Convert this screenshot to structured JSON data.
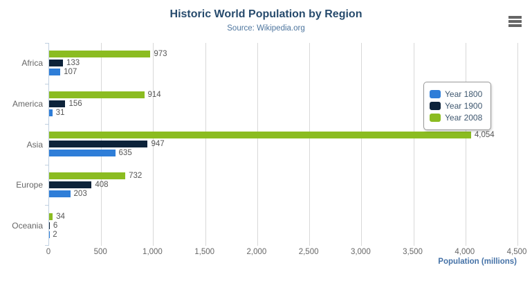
{
  "chart_data": {
    "type": "bar",
    "title": "Historic World Population by Region",
    "subtitle": "Source: Wikipedia.org",
    "categories": [
      "Africa",
      "America",
      "Asia",
      "Europe",
      "Oceania"
    ],
    "series": [
      {
        "name": "Year 1800",
        "color": "#2f7ed8",
        "values": [
          107,
          31,
          635,
          203,
          2
        ]
      },
      {
        "name": "Year 1900",
        "color": "#0d233a",
        "values": [
          133,
          156,
          947,
          408,
          6
        ]
      },
      {
        "name": "Year 2008",
        "color": "#8bbc21",
        "values": [
          973,
          914,
          4054,
          732,
          34
        ]
      }
    ],
    "series_display_order_top_to_bottom": [
      2,
      1,
      0
    ],
    "xlabel": "Population (millions)",
    "xlim": [
      0,
      4500
    ],
    "xticks": [
      0,
      500,
      1000,
      1500,
      2000,
      2500,
      3000,
      3500,
      4000,
      4500
    ],
    "grid": true,
    "legend_position": "right",
    "data_labels_shown": true
  },
  "colors": {
    "title_text": "#274b6d",
    "subtitle_text": "#4d759e",
    "axis_title_text": "#4572a7",
    "grid_line": "#d8d8d8",
    "axis_line": "#c0d0e0",
    "tick_label_text": "#666666",
    "data_label_text": "#555555",
    "legend_text": "#3e576f",
    "menu_icon": "#666666"
  },
  "icons": {
    "menu": "hamburger-icon"
  }
}
